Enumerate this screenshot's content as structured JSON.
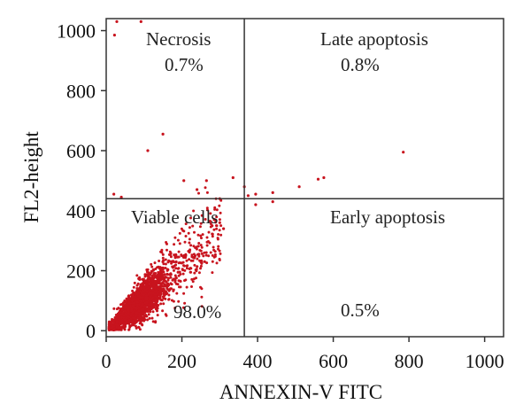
{
  "chart_data": {
    "type": "scatter",
    "xlabel": "ANNEXIN-V FITC",
    "ylabel": "FL2-height",
    "xlim": [
      0,
      1050
    ],
    "ylim": [
      -20,
      1040
    ],
    "xticks": [
      "0",
      "200",
      "400",
      "600",
      "800",
      "1000"
    ],
    "xtick_values": [
      0,
      200,
      400,
      600,
      800,
      1000
    ],
    "yticks": [
      "0",
      "200",
      "400",
      "600",
      "800",
      "1000"
    ],
    "ytick_values": [
      0,
      200,
      400,
      600,
      800,
      1000
    ],
    "gates": {
      "x": 365,
      "y": 440
    },
    "quadrants": {
      "upper_left": {
        "label": "Necrosis",
        "percent": "0.7%"
      },
      "upper_right": {
        "label": "Late apoptosis",
        "percent": "0.8%"
      },
      "lower_left": {
        "label": "Viable cells",
        "percent": "98.0%"
      },
      "lower_right": {
        "label": "Early apoptosis",
        "percent": "0.5%"
      }
    },
    "point_color": "#c8141e",
    "outlier_points": [
      [
        28,
        1030
      ],
      [
        92,
        1030
      ],
      [
        22,
        985
      ],
      [
        150,
        655
      ],
      [
        110,
        600
      ],
      [
        785,
        595
      ],
      [
        205,
        500
      ],
      [
        265,
        500
      ],
      [
        335,
        510
      ],
      [
        365,
        480
      ],
      [
        20,
        455
      ],
      [
        40,
        445
      ],
      [
        375,
        450
      ],
      [
        395,
        455
      ],
      [
        440,
        460
      ],
      [
        510,
        480
      ],
      [
        560,
        505
      ],
      [
        575,
        510
      ],
      [
        240,
        470
      ],
      [
        300,
        440
      ],
      [
        300,
        360
      ],
      [
        280,
        350
      ],
      [
        395,
        420
      ],
      [
        440,
        430
      ],
      [
        260,
        230
      ],
      [
        190,
        195
      ],
      [
        310,
        340
      ],
      [
        245,
        255
      ]
    ],
    "cluster": {
      "count": 2200,
      "slope": 1.12,
      "x_range": [
        8,
        330
      ],
      "center_x": 85,
      "spread": 38
    }
  }
}
